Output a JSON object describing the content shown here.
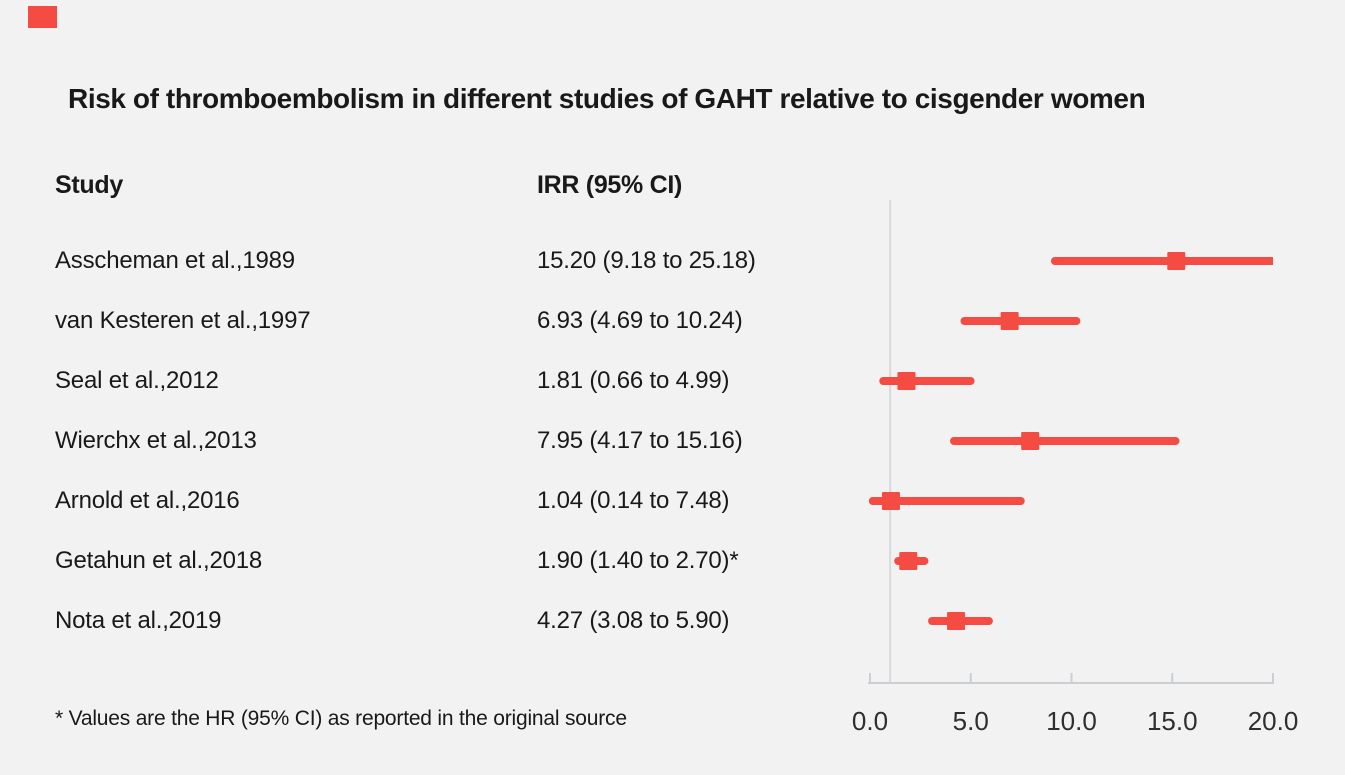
{
  "title": "Risk of thromboembolism in different studies of GAHT relative to cisgender women",
  "table": {
    "study_header": "Study",
    "irr_header": "IRR (95% CI)"
  },
  "footnote": "* Values are the HR (95% CI) as reported in the original source",
  "colors": {
    "background": "#f2f2f2",
    "accent_red": "#f44b42",
    "text": "#191919",
    "axis": "#cbcfd3",
    "reference_line": "#d7dadd",
    "tick_label": "#2f2f2f"
  },
  "chart_data": {
    "type": "scatter",
    "subtype": "forest-plot",
    "title": "Risk of thromboembolism in different studies of GAHT relative to cisgender women",
    "xlabel": "",
    "ylabel": "",
    "xlim": [
      0.0,
      20.0
    ],
    "xticks": [
      0.0,
      5.0,
      10.0,
      15.0,
      20.0
    ],
    "xtick_labels": [
      "0.0",
      "5.0",
      "10.0",
      "15.0",
      "20.0"
    ],
    "reference_line_x": 1.0,
    "grid": false,
    "legend": "none",
    "marker": "square",
    "marker_color": "#f44b42",
    "axis_color": "#cbcfd3",
    "reference_line_color": "#d7dadd",
    "studies": [
      {
        "label": "Asscheman et al.,1989",
        "irr_text": "15.20 (9.18 to 25.18)",
        "value": 15.2,
        "ci_low": 9.18,
        "ci_high": 25.18
      },
      {
        "label": "van Kesteren et al.,1997",
        "irr_text": "6.93 (4.69 to 10.24)",
        "value": 6.93,
        "ci_low": 4.69,
        "ci_high": 10.24
      },
      {
        "label": "Seal et al.,2012",
        "irr_text": "1.81 (0.66 to 4.99)",
        "value": 1.81,
        "ci_low": 0.66,
        "ci_high": 4.99
      },
      {
        "label": "Wierchx et al.,2013",
        "irr_text": "7.95 (4.17 to 15.16)",
        "value": 7.95,
        "ci_low": 4.17,
        "ci_high": 15.16
      },
      {
        "label": "Arnold et al.,2016",
        "irr_text": "1.04 (0.14 to 7.48)",
        "value": 1.04,
        "ci_low": 0.14,
        "ci_high": 7.48
      },
      {
        "label": "Getahun et al.,2018",
        "irr_text": "1.90 (1.40 to 2.70)*",
        "value": 1.9,
        "ci_low": 1.4,
        "ci_high": 2.7
      },
      {
        "label": "Nota et al.,2019",
        "irr_text": "4.27 (3.08 to 5.90)",
        "value": 4.27,
        "ci_low": 3.08,
        "ci_high": 5.9
      }
    ]
  }
}
